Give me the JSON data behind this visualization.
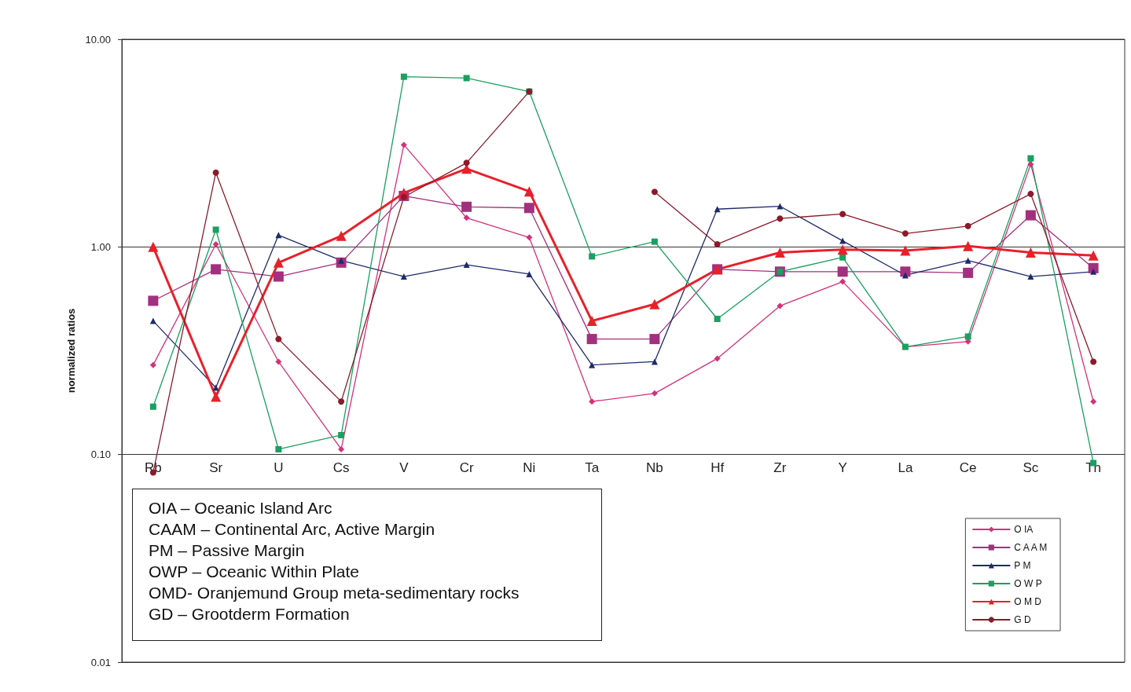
{
  "chart_data": {
    "type": "line",
    "ylabel": "normalized ratios",
    "log": "y",
    "ylim": [
      0.01,
      10
    ],
    "yticks": [
      {
        "value": 0.01,
        "label": "0.01"
      },
      {
        "value": 0.1,
        "label": "0.10"
      },
      {
        "value": 1,
        "label": "1.00"
      },
      {
        "value": 10,
        "label": "10.00"
      }
    ],
    "grid": "y",
    "legend": "bottom right",
    "categories": [
      "Rb",
      "Sr",
      "U",
      "Cs",
      "V",
      "Cr",
      "Ni",
      "Ta",
      "Nb",
      "Hf",
      "Zr",
      "Y",
      "La",
      "Ce",
      "Sc",
      "Th"
    ],
    "series": [
      {
        "name": "O IA",
        "color": "#d4317a",
        "marker": "diamond",
        "values": [
          0.27,
          1.03,
          0.28,
          0.106,
          3.1,
          1.38,
          1.11,
          0.18,
          0.197,
          0.29,
          0.52,
          0.68,
          0.33,
          0.35,
          2.5,
          0.18
        ]
      },
      {
        "name": "C A A M",
        "color": "#a3307e",
        "marker": "square",
        "values": [
          0.55,
          0.78,
          0.72,
          0.84,
          1.76,
          1.56,
          1.54,
          0.36,
          0.36,
          0.78,
          0.76,
          0.76,
          0.76,
          0.75,
          1.42,
          0.79
        ]
      },
      {
        "name": "P M",
        "color": "#1f2a6b",
        "marker": "triangle",
        "values": [
          0.44,
          0.21,
          1.14,
          0.86,
          0.72,
          0.82,
          0.74,
          0.27,
          0.28,
          1.52,
          1.57,
          1.07,
          0.73,
          0.86,
          0.72,
          0.76
        ]
      },
      {
        "name": "O W P",
        "color": "#1aa060",
        "marker": "square",
        "values": [
          0.17,
          1.21,
          0.106,
          0.124,
          6.6,
          6.5,
          5.6,
          0.9,
          1.06,
          0.45,
          0.76,
          0.89,
          0.33,
          0.37,
          2.67,
          0.091
        ]
      },
      {
        "name": "O M D",
        "color": "#e8202a",
        "marker": "triangle",
        "values": [
          1.0,
          0.19,
          0.84,
          1.13,
          1.82,
          2.38,
          1.85,
          0.44,
          0.53,
          0.78,
          0.94,
          0.97,
          0.96,
          1.01,
          0.94,
          0.91
        ]
      },
      {
        "name": "G D",
        "color": "#8b1a2a",
        "marker": "circle",
        "values": [
          0.082,
          2.28,
          0.36,
          0.18,
          1.74,
          2.54,
          5.6,
          null,
          1.84,
          1.03,
          1.37,
          1.44,
          1.16,
          1.26,
          1.8,
          0.28
        ]
      }
    ],
    "annotations": [
      "OIA – Oceanic Island Arc",
      "CAAM – Continental Arc, Active Margin",
      "PM – Passive Margin",
      "OWP – Oceanic Within Plate",
      "OMD- Oranjemund Group meta-sedimentary rocks",
      "GD – Grootderm Formation"
    ]
  }
}
